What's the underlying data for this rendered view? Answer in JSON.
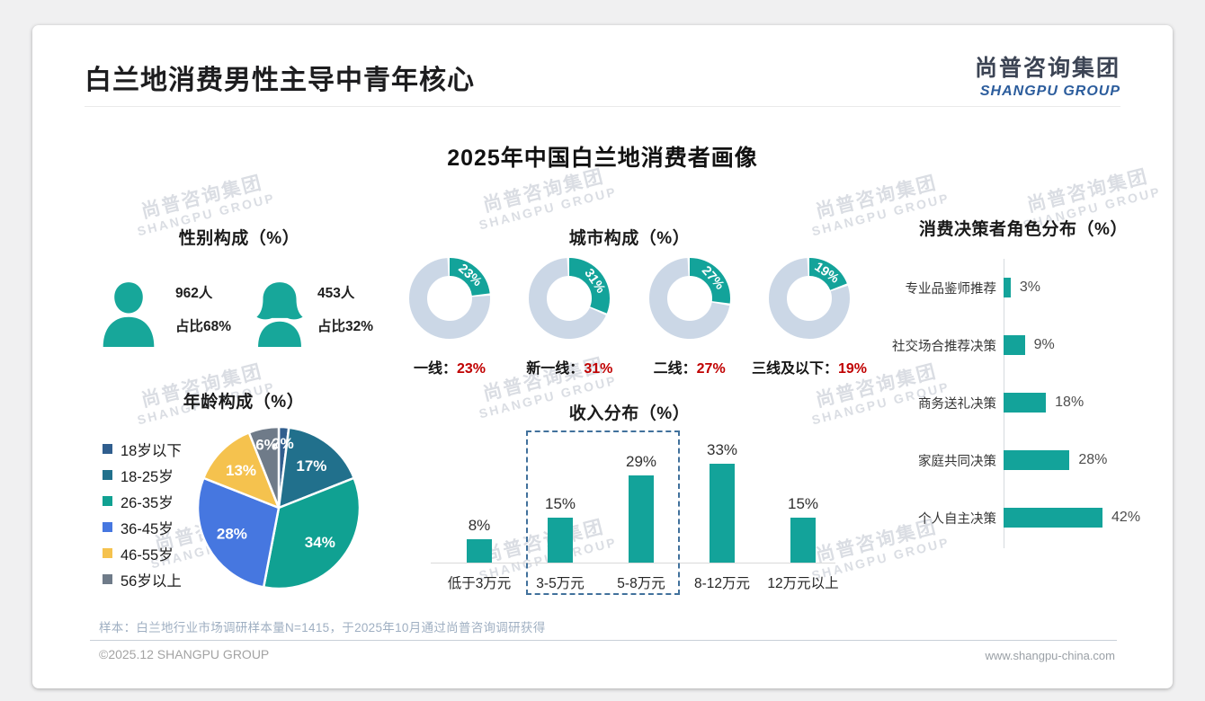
{
  "page": {
    "header_title": "白兰地消费男性主导中青年核心",
    "logo": {
      "cn": "尚普咨询集团",
      "en": "SHANGPU GROUP"
    },
    "main_title": "2025年中国白兰地消费者画像",
    "watermark_line1": "尚普咨询集团",
    "watermark_line2": "SHANGPU GROUP"
  },
  "gender": {
    "title": "性别构成（%）",
    "male": {
      "count": "962人",
      "share": "占比68%"
    },
    "female": {
      "count": "453人",
      "share": "占比32%"
    }
  },
  "chart_data": [
    {
      "id": "city",
      "type": "donut",
      "title": "城市构成（%）",
      "categories": [
        "一线",
        "新一线",
        "二线",
        "三线及以下"
      ],
      "values": [
        23,
        31,
        27,
        19
      ],
      "value_suffix": "%",
      "segment_color": "#13A39A",
      "ring_color": "#CBD7E6",
      "value_label_color": "#C00000",
      "start_angle": "top",
      "direction": "clockwise"
    },
    {
      "id": "age",
      "type": "pie",
      "title": "年龄构成（%）",
      "categories": [
        "18岁以下",
        "18-25岁",
        "26-35岁",
        "36-45岁",
        "46-55岁",
        "56岁以上"
      ],
      "values": [
        2,
        17,
        34,
        28,
        13,
        6
      ],
      "colors": [
        "#305E8E",
        "#21708C",
        "#10A192",
        "#4677E0",
        "#F5C24E",
        "#6F7B89"
      ],
      "legend_position": "left",
      "start_angle": "top",
      "direction": "clockwise"
    },
    {
      "id": "income",
      "type": "bar",
      "title": "收入分布（%）",
      "categories": [
        "低于3万元",
        "3-5万元",
        "5-8万元",
        "8-12万元",
        "12万元以上"
      ],
      "values": [
        8,
        15,
        29,
        33,
        15
      ],
      "bar_color": "#13A39A",
      "ylim": [
        0,
        35
      ],
      "highlight_box": {
        "categories": [
          "3-5万元",
          "5-8万元"
        ],
        "border_color": "#41719C"
      }
    },
    {
      "id": "decision",
      "type": "bar_horizontal",
      "title": "消费决策者角色分布（%）",
      "categories": [
        "专业品鉴师推荐",
        "社交场合推荐决策",
        "商务送礼决策",
        "家庭共同决策",
        "个人自主决策"
      ],
      "values": [
        3,
        9,
        18,
        28,
        42
      ],
      "bar_color": "#13A39A",
      "xlim": [
        0,
        45
      ]
    }
  ],
  "footer": {
    "sample_note": "样本：白兰地行业市场调研样本量N=1415，于2025年10月通过尚普咨询调研获得",
    "copyright": "©2025.12 SHANGPU GROUP",
    "website": "www.shangpu-china.com"
  }
}
